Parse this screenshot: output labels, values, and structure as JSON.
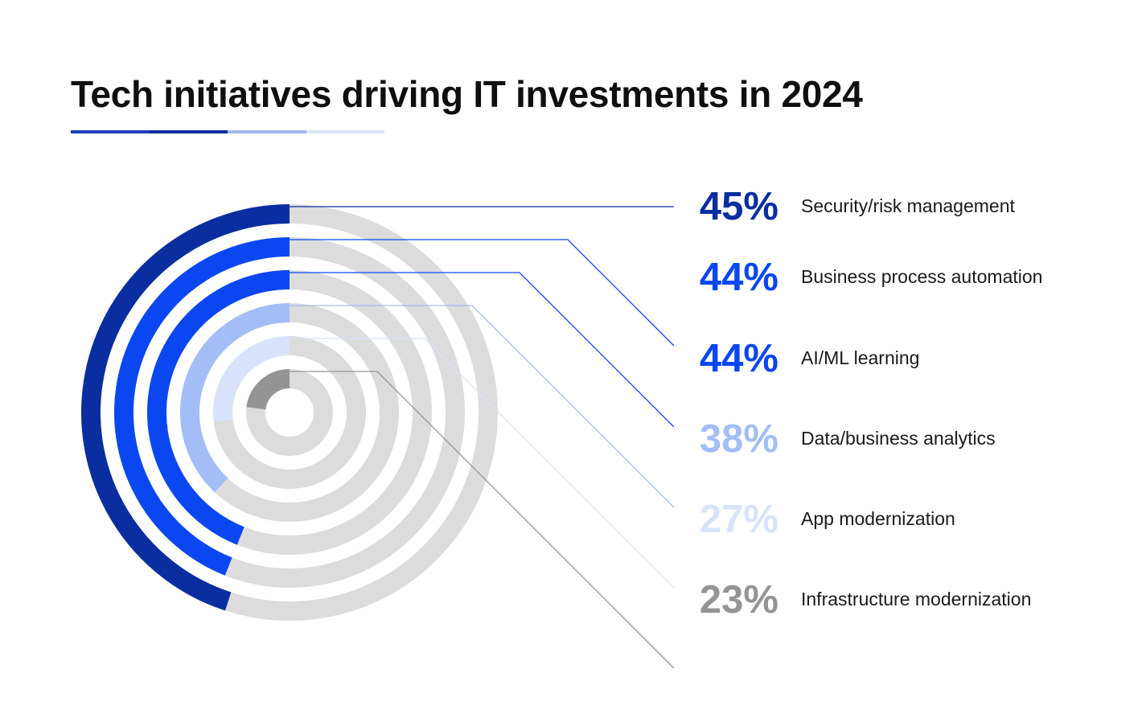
{
  "title": "Tech initiatives driving IT investments in 2024",
  "underline_colors": [
    "#1a3fbf",
    "#0a2ea0",
    "#9fb6ee",
    "#dde6fa"
  ],
  "track_color": "#dcdcdc",
  "chart_data": {
    "type": "radial-bar",
    "title": "Tech initiatives driving IT investments in 2024",
    "unit": "%",
    "series": [
      {
        "label": "Security/risk management",
        "value": 45,
        "display": "45%",
        "color": "#0a2ea0"
      },
      {
        "label": "Business process automation",
        "value": 44,
        "display": "44%",
        "color": "#0b47f0"
      },
      {
        "label": "AI/ML learning",
        "value": 44,
        "display": "44%",
        "color": "#0b47f0"
      },
      {
        "label": "Data/business analytics",
        "value": 38,
        "display": "38%",
        "color": "#a3bdf7"
      },
      {
        "label": "App modernization",
        "value": 27,
        "display": "27%",
        "color": "#d8e3fb"
      },
      {
        "label": "Infrastructure modernization",
        "value": 23,
        "display": "23%",
        "color": "#949494"
      }
    ]
  }
}
